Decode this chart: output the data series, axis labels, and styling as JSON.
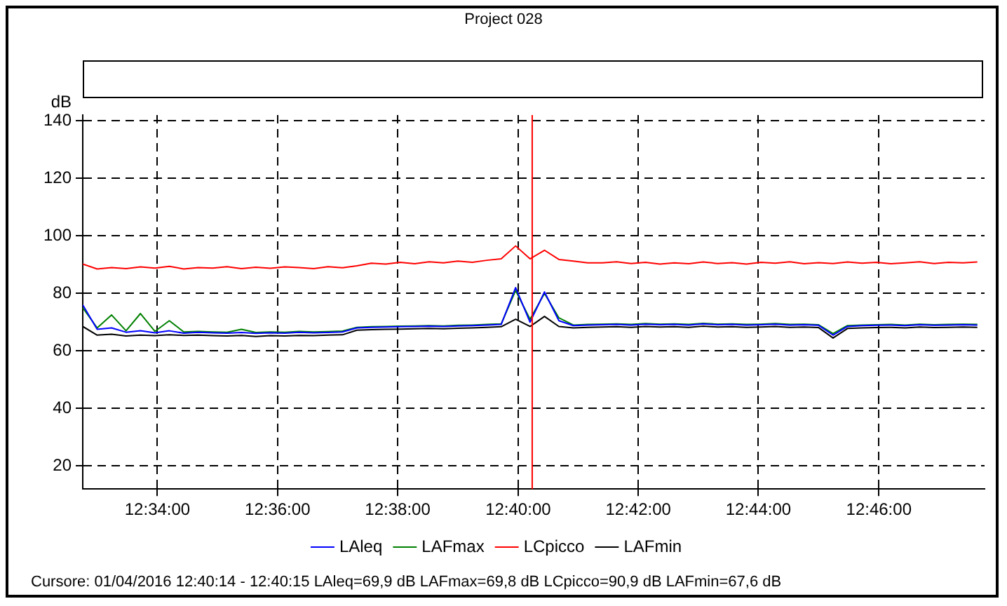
{
  "chart_data": {
    "type": "line",
    "title": "Project 028",
    "ylabel": "dB",
    "x": [
      12.546,
      12.55,
      12.554,
      12.558,
      12.562,
      12.566,
      12.57,
      12.574,
      12.578,
      12.582,
      12.586,
      12.59,
      12.594,
      12.598,
      12.602,
      12.606,
      12.61,
      12.614,
      12.618,
      12.622,
      12.626,
      12.63,
      12.634,
      12.638,
      12.642,
      12.646,
      12.65,
      12.654,
      12.658,
      12.662,
      12.666,
      12.67,
      12.674,
      12.678,
      12.682,
      12.686,
      12.69,
      12.694,
      12.698,
      12.702,
      12.706,
      12.71,
      12.714,
      12.718,
      12.722,
      12.726,
      12.73,
      12.734,
      12.738,
      12.742,
      12.746,
      12.75,
      12.754,
      12.758,
      12.762,
      12.766,
      12.77,
      12.774,
      12.778,
      12.782,
      12.786,
      12.79,
      12.794
    ],
    "series": [
      {
        "name": "LAleq",
        "color": "#0000ff",
        "values": [
          76,
          67.5,
          68,
          66.5,
          67,
          66.3,
          67,
          66.2,
          66.5,
          66.3,
          66.2,
          66.4,
          66.1,
          66.3,
          66.2,
          66.5,
          66.3,
          66.4,
          66.6,
          68.0,
          68.2,
          68.3,
          68.4,
          68.5,
          68.6,
          68.5,
          68.7,
          68.8,
          69.0,
          69.2,
          82.0,
          70.0,
          80.5,
          70.5,
          68.8,
          69.0,
          69.1,
          69.2,
          69.0,
          69.3,
          69.1,
          69.2,
          69.0,
          69.4,
          69.1,
          69.2,
          69.0,
          69.1,
          69.3,
          69.0,
          69.1,
          68.9,
          65.5,
          68.5,
          68.8,
          68.9,
          69.0,
          68.8,
          69.1,
          68.9,
          69.0,
          69.1,
          69.0
        ]
      },
      {
        "name": "LAFmax",
        "color": "#008000",
        "values": [
          75,
          68,
          72.5,
          67,
          73,
          66.8,
          70.5,
          66.6,
          66.8,
          66.6,
          66.5,
          67.5,
          66.4,
          66.6,
          66.5,
          66.8,
          66.6,
          66.7,
          66.9,
          68.2,
          68.4,
          68.5,
          68.6,
          68.7,
          68.8,
          68.7,
          68.9,
          69.0,
          69.2,
          69.4,
          81.0,
          71.0,
          80.0,
          71.5,
          69.0,
          69.2,
          69.3,
          69.4,
          69.2,
          69.5,
          69.3,
          69.4,
          69.2,
          69.6,
          69.3,
          69.4,
          69.2,
          69.3,
          69.5,
          69.2,
          69.3,
          69.1,
          66.0,
          68.8,
          69.0,
          69.1,
          69.2,
          69.0,
          69.3,
          69.1,
          69.2,
          69.3,
          69.2
        ]
      },
      {
        "name": "LCpicco",
        "color": "#ff0000",
        "values": [
          90.2,
          88.5,
          89.0,
          88.6,
          89.2,
          88.8,
          89.4,
          88.5,
          89.0,
          88.8,
          89.3,
          88.6,
          89.1,
          88.7,
          89.2,
          89.0,
          88.6,
          89.3,
          88.9,
          89.6,
          90.5,
          90.2,
          90.8,
          90.3,
          91.0,
          90.6,
          91.2,
          90.8,
          91.5,
          92.0,
          96.5,
          92.0,
          95.0,
          91.8,
          91.2,
          90.6,
          90.6,
          91.0,
          90.4,
          90.8,
          90.2,
          90.6,
          90.3,
          90.9,
          90.4,
          90.7,
          90.2,
          90.8,
          90.5,
          91.0,
          90.3,
          90.7,
          90.4,
          90.9,
          90.5,
          90.8,
          90.3,
          90.6,
          91.0,
          90.4,
          90.8,
          90.6,
          90.9
        ]
      },
      {
        "name": "LAFmin",
        "color": "#000000",
        "values": [
          68.5,
          65.5,
          65.8,
          65.2,
          65.5,
          65.3,
          65.6,
          65.4,
          65.5,
          65.3,
          65.2,
          65.4,
          65.0,
          65.3,
          65.2,
          65.4,
          65.3,
          65.5,
          65.6,
          67.2,
          67.4,
          67.5,
          67.6,
          67.7,
          67.8,
          67.7,
          67.9,
          68.0,
          68.2,
          68.4,
          71.0,
          68.5,
          72.0,
          68.5,
          68.0,
          68.2,
          68.3,
          68.4,
          68.2,
          68.5,
          68.3,
          68.4,
          68.2,
          68.6,
          68.3,
          68.4,
          68.2,
          68.3,
          68.5,
          68.2,
          68.3,
          68.1,
          64.5,
          67.8,
          68.0,
          68.1,
          68.2,
          68.0,
          68.3,
          68.1,
          68.2,
          68.3,
          68.2
        ]
      }
    ],
    "xlim": [
      12.546,
      12.796
    ],
    "xticks": [
      {
        "value": 12.5667,
        "label": "12:34:00"
      },
      {
        "value": 12.6,
        "label": "12:36:00"
      },
      {
        "value": 12.6333,
        "label": "12:38:00"
      },
      {
        "value": 12.6667,
        "label": "12:40:00"
      },
      {
        "value": 12.7,
        "label": "12:42:00"
      },
      {
        "value": 12.7333,
        "label": "12:44:00"
      },
      {
        "value": 12.7667,
        "label": "12:46:00"
      }
    ],
    "ylim": [
      12,
      142
    ],
    "yticks": [
      20,
      40,
      60,
      80,
      100,
      120,
      140
    ],
    "ref_lines": [
      {
        "axis": "x",
        "value": 12.6706,
        "color": "#ff0000"
      }
    ],
    "annotations": [
      "Cursore: 01/04/2016 12:40:14 - 12:40:15  LAleq=69,9 dB  LAFmax=69,8 dB  LCpicco=90,9 dB  LAFmin=67,6 dB"
    ],
    "grid": true,
    "legend": "bottom",
    "marker": "none",
    "line_style": "solid"
  }
}
